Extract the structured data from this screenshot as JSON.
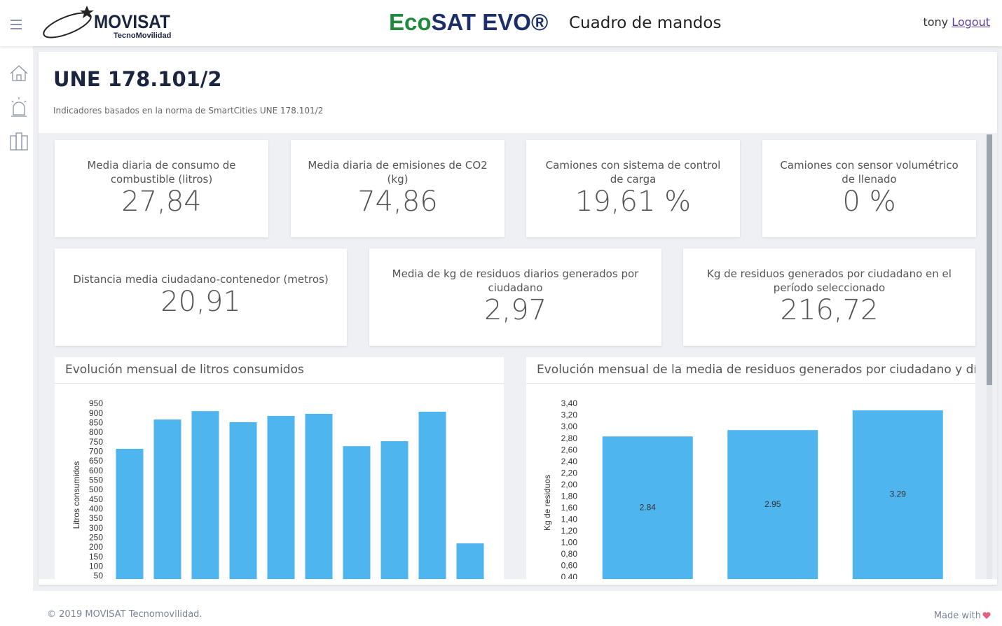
{
  "header": {
    "brand": "MOVISAT",
    "brand_tagline": "TecnoMovilidad",
    "app_name_eco": "Eco",
    "app_name_rest": "SAT EVO®",
    "page_name": "Cuadro de mandos",
    "user": "tony",
    "logout": "Logout"
  },
  "page": {
    "title": "UNE 178.101/2",
    "description": "Indicadores basados en la norma de SmartCities UNE 178.101/2"
  },
  "kpis": [
    {
      "label": "Media diaria de consumo de combustible (litros)",
      "value": "27,84"
    },
    {
      "label": "Media diaria de emisiones de CO2 (kg)",
      "value": "74,86"
    },
    {
      "label": "Camiones con sistema de control de carga",
      "value": "19,61 %"
    },
    {
      "label": "Camiones con sensor volumétrico de llenado",
      "value": "0 %"
    },
    {
      "label": "Distancia media ciudadano-contenedor (metros)",
      "value": "20,91"
    },
    {
      "label": "Media de kg de residuos diarios generados por ciudadano",
      "value": "2,97"
    },
    {
      "label": "Kg de residuos generados por ciudadano en el período seleccionado",
      "value": "216,72"
    }
  ],
  "chart_data": [
    {
      "type": "bar",
      "title": "Evolución mensual de litros consumidos",
      "y_label": "Litros consumidos",
      "color": "#4fb5ee",
      "values": [
        716,
        869,
        913,
        855,
        888,
        899,
        730,
        756,
        910,
        222
      ],
      "ylim": [
        0,
        950
      ],
      "yticks": [
        50,
        100,
        150,
        200,
        250,
        300,
        350,
        400,
        450,
        500,
        550,
        600,
        650,
        700,
        750,
        800,
        850,
        900,
        950
      ]
    },
    {
      "type": "bar",
      "title": "Evolución mensual de la media de residuos generados por ciudadano y día",
      "y_label": "Kg de residuos",
      "color": "#4fb5ee",
      "values": [
        2.84,
        2.95,
        3.29
      ],
      "ylim": [
        0,
        3.4
      ],
      "yticks": [
        {
          "value": 0.4,
          "label": "0,40"
        },
        {
          "value": 0.6,
          "label": "0,60"
        },
        {
          "value": 0.8,
          "label": "0,80"
        },
        {
          "value": 1.0,
          "label": "1,00"
        },
        {
          "value": 1.2,
          "label": "1,20"
        },
        {
          "value": 1.4,
          "label": "1,40"
        },
        {
          "value": 1.6,
          "label": "1,60"
        },
        {
          "value": 1.8,
          "label": "1,80"
        },
        {
          "value": 2.0,
          "label": "2,00"
        },
        {
          "value": 2.2,
          "label": "2,20"
        },
        {
          "value": 2.4,
          "label": "2,40"
        },
        {
          "value": 2.6,
          "label": "2,60"
        },
        {
          "value": 2.8,
          "label": "2,80"
        },
        {
          "value": 3.0,
          "label": "3,00"
        },
        {
          "value": 3.2,
          "label": "3,20"
        },
        {
          "value": 3.4,
          "label": "3,40"
        }
      ]
    }
  ],
  "footer": {
    "copyright": "© 2019 MOVISAT Tecnomovilidad.",
    "made_with": "Made with"
  }
}
